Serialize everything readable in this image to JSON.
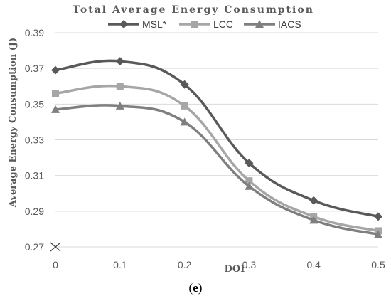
{
  "chart_data": {
    "type": "line",
    "title": "Total Average Energy Consumption",
    "xlabel": "DOI",
    "ylabel": "Average Energy Consumption (J)",
    "x": [
      0,
      0.1,
      0.2,
      0.3,
      0.4,
      0.5
    ],
    "x_tick_labels": [
      "0",
      "0.1",
      "0.2",
      "0.3",
      "0.4",
      "0.5"
    ],
    "y_tick_labels": [
      "0.27",
      "0.29",
      "0.31",
      "0.33",
      "0.35",
      "0.37",
      "0.39"
    ],
    "ylim": [
      0.27,
      0.39
    ],
    "grid": "horizontal",
    "legend_position": "top",
    "smooth": true,
    "series": [
      {
        "name": "MSL*",
        "color": "#595959",
        "marker": "diamond",
        "values": [
          0.369,
          0.374,
          0.361,
          0.317,
          0.296,
          0.287
        ]
      },
      {
        "name": "LCC",
        "color": "#a6a6a6",
        "marker": "square",
        "values": [
          0.356,
          0.36,
          0.349,
          0.307,
          0.287,
          0.279
        ]
      },
      {
        "name": "IACS",
        "color": "#7f7f7f",
        "marker": "triangle",
        "values": [
          0.347,
          0.349,
          0.34,
          0.304,
          0.285,
          0.277
        ]
      }
    ]
  },
  "caption": {
    "open": "(",
    "letter": "e",
    "close": ")"
  }
}
